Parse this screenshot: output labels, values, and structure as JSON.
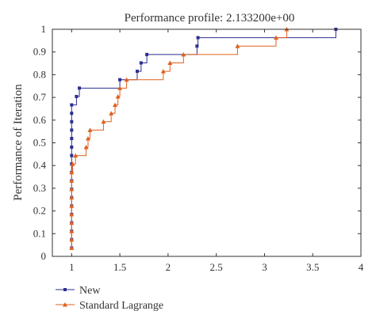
{
  "chart_data": {
    "type": "line",
    "title": "Performance profile: 2.133200e+00",
    "xlabel": "",
    "ylabel": "Performance of Iteration",
    "xlim": [
      0.8,
      4
    ],
    "ylim": [
      0,
      1
    ],
    "xticks": [
      1,
      1.5,
      2,
      2.5,
      3,
      3.5,
      4
    ],
    "xtick_labels": [
      "1",
      "1.5",
      "2",
      "2.5",
      "3",
      "3.5",
      "4"
    ],
    "yticks": [
      0,
      0.1,
      0.2,
      0.3,
      0.4,
      0.5,
      0.6,
      0.7,
      0.8,
      0.9,
      1
    ],
    "ytick_labels": [
      "0",
      "0.1",
      "0.2",
      "0.3",
      "0.4",
      "0.5",
      "0.6",
      "0.7",
      "0.8",
      "0.9",
      "1"
    ],
    "legend_position": "bottom-left",
    "step": true,
    "series": [
      {
        "name": "New",
        "color": "#2b2f8f",
        "marker": "square",
        "points": [
          [
            1.0,
            0.037
          ],
          [
            1.0,
            0.074
          ],
          [
            1.0,
            0.111
          ],
          [
            1.0,
            0.148
          ],
          [
            1.0,
            0.185
          ],
          [
            1.0,
            0.222
          ],
          [
            1.0,
            0.259
          ],
          [
            1.0,
            0.296
          ],
          [
            1.0,
            0.333
          ],
          [
            1.0,
            0.37
          ],
          [
            1.0,
            0.407
          ],
          [
            1.0,
            0.444
          ],
          [
            1.0,
            0.481
          ],
          [
            1.0,
            0.519
          ],
          [
            1.0,
            0.556
          ],
          [
            1.0,
            0.593
          ],
          [
            1.0,
            0.63
          ],
          [
            1.0,
            0.667
          ],
          [
            1.05,
            0.704
          ],
          [
            1.08,
            0.741
          ],
          [
            1.5,
            0.778
          ],
          [
            1.68,
            0.815
          ],
          [
            1.72,
            0.852
          ],
          [
            1.78,
            0.889
          ],
          [
            2.3,
            0.926
          ],
          [
            2.31,
            0.963
          ],
          [
            3.74,
            1.0
          ]
        ]
      },
      {
        "name": "Standard Lagrange",
        "color": "#e0601f",
        "marker": "triangle",
        "points": [
          [
            1.0,
            0.037
          ],
          [
            1.0,
            0.074
          ],
          [
            1.0,
            0.111
          ],
          [
            1.0,
            0.148
          ],
          [
            1.0,
            0.185
          ],
          [
            1.0,
            0.222
          ],
          [
            1.0,
            0.259
          ],
          [
            1.0,
            0.296
          ],
          [
            1.0,
            0.333
          ],
          [
            1.0,
            0.37
          ],
          [
            1.01,
            0.407
          ],
          [
            1.04,
            0.444
          ],
          [
            1.15,
            0.481
          ],
          [
            1.17,
            0.519
          ],
          [
            1.19,
            0.556
          ],
          [
            1.33,
            0.593
          ],
          [
            1.41,
            0.63
          ],
          [
            1.45,
            0.667
          ],
          [
            1.48,
            0.704
          ],
          [
            1.5,
            0.741
          ],
          [
            1.57,
            0.778
          ],
          [
            1.95,
            0.815
          ],
          [
            2.02,
            0.852
          ],
          [
            2.16,
            0.889
          ],
          [
            2.72,
            0.926
          ],
          [
            3.12,
            0.963
          ],
          [
            3.23,
            1.0
          ]
        ]
      }
    ]
  }
}
